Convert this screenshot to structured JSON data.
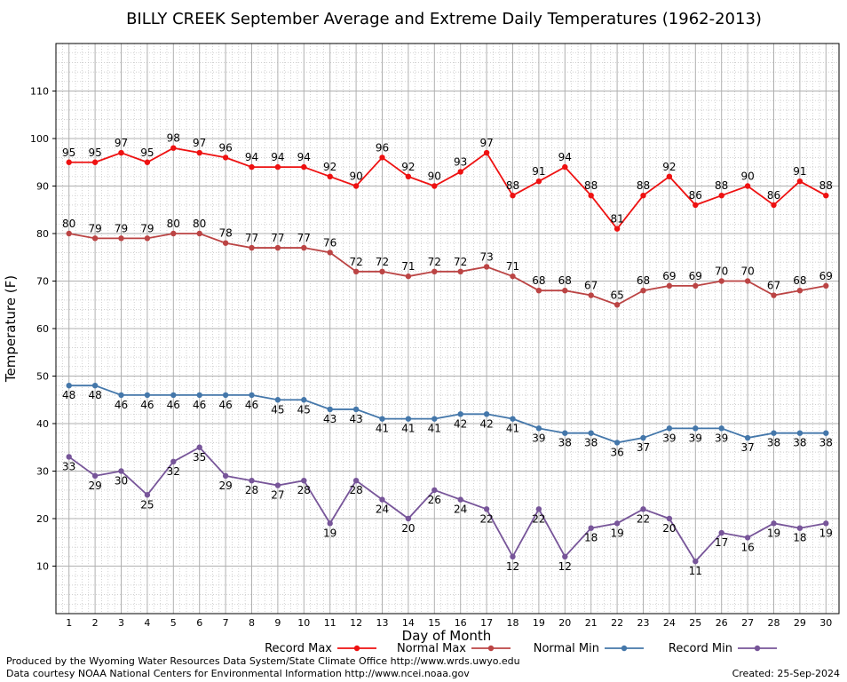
{
  "chart_data": {
    "type": "line",
    "title": "BILLY CREEK September Average and Extreme Daily Temperatures (1962-2013)",
    "xlabel": "Day of Month",
    "ylabel": "Temperature (F)",
    "x": [
      1,
      2,
      3,
      4,
      5,
      6,
      7,
      8,
      9,
      10,
      11,
      12,
      13,
      14,
      15,
      16,
      17,
      18,
      19,
      20,
      21,
      22,
      23,
      24,
      25,
      26,
      27,
      28,
      29,
      30
    ],
    "xlim": [
      0.5,
      30.5
    ],
    "ylim": [
      0,
      120
    ],
    "yticks": [
      10,
      20,
      30,
      40,
      50,
      60,
      70,
      80,
      90,
      100,
      110
    ],
    "grid": true,
    "legend_position": "bottom",
    "series": [
      {
        "name": "Record Max",
        "color": "#ee1111",
        "label_position": "above",
        "values": [
          95,
          95,
          97,
          95,
          98,
          97,
          96,
          94,
          94,
          94,
          92,
          90,
          96,
          92,
          90,
          93,
          97,
          88,
          91,
          94,
          88,
          81,
          88,
          92,
          86,
          88,
          90,
          86,
          91,
          88
        ]
      },
      {
        "name": "Normal Max",
        "color": "#bb4444",
        "label_position": "above",
        "values": [
          80,
          79,
          79,
          79,
          80,
          80,
          78,
          77,
          77,
          77,
          76,
          72,
          72,
          71,
          72,
          72,
          73,
          71,
          68,
          68,
          67,
          65,
          68,
          69,
          69,
          70,
          70,
          67,
          68,
          69
        ]
      },
      {
        "name": "Normal Min",
        "color": "#4477aa",
        "label_position": "below",
        "values": [
          48,
          48,
          46,
          46,
          46,
          46,
          46,
          46,
          45,
          45,
          43,
          43,
          41,
          41,
          41,
          42,
          42,
          41,
          39,
          38,
          38,
          36,
          37,
          39,
          39,
          39,
          37,
          38,
          38,
          38
        ]
      },
      {
        "name": "Record Min",
        "color": "#775599",
        "label_position": "below",
        "values": [
          33,
          29,
          30,
          25,
          32,
          35,
          29,
          28,
          27,
          28,
          19,
          28,
          24,
          20,
          26,
          24,
          22,
          12,
          22,
          12,
          18,
          19,
          22,
          20,
          11,
          17,
          16,
          19,
          18,
          19
        ]
      }
    ]
  },
  "footer": {
    "produced_by": "Produced by the Wyoming Water Resources Data System/State Climate Office http://www.wrds.uwyo.edu",
    "data_courtesy": "Data courtesy NOAA National Centers for Environmental Information http://www.ncei.noaa.gov",
    "created": "Created:  25-Sep-2024"
  }
}
